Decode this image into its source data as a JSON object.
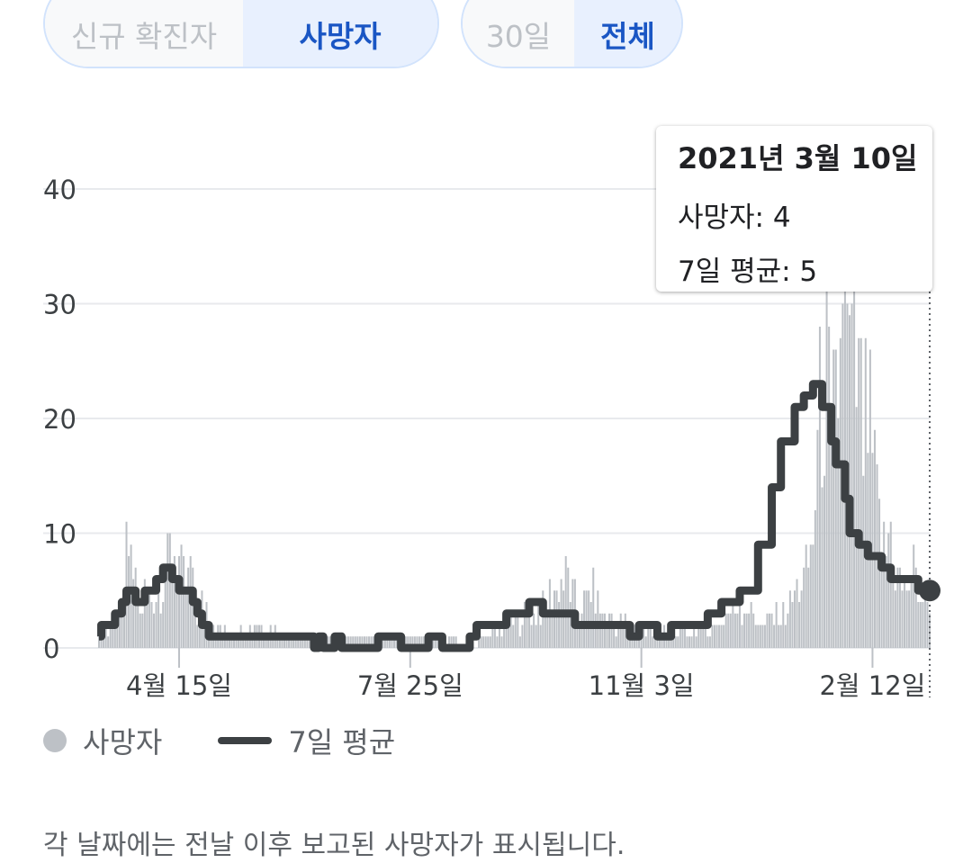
{
  "metric_toggle": {
    "options": [
      "신규 확진자",
      "사망자"
    ],
    "selected": "사망자"
  },
  "range_toggle": {
    "options": [
      "30일",
      "전체"
    ],
    "selected": "전체"
  },
  "tooltip": {
    "date": "2021년 3월 10일",
    "deaths_line": "사망자: 4",
    "avg_line": "7일 평균: 5"
  },
  "legend": {
    "bars": "사망자",
    "line": "7일 평균"
  },
  "footnote": "각 날짜에는 전날 이후 보고된 사망자가 표시됩니다.",
  "colors": {
    "bar": "#bdc1c6",
    "line": "#3c4043",
    "grid": "#e8eaed",
    "accent": "#1a56c4"
  },
  "chart_data": {
    "type": "bar",
    "title": "",
    "ylim": [
      0,
      40
    ],
    "y_ticks": [
      0,
      10,
      20,
      30,
      40
    ],
    "x_ticks": [
      {
        "label": "4월 15일",
        "day": 35
      },
      {
        "label": "7월 25일",
        "day": 136
      },
      {
        "label": "11월 3일",
        "day": 237
      },
      {
        "label": "2월 12일",
        "day": 338
      }
    ],
    "day_count": 364,
    "marker_day": 363,
    "series": [
      {
        "name": "사망자",
        "kind": "bar",
        "keypoints": [
          [
            0,
            1
          ],
          [
            6,
            2
          ],
          [
            10,
            3
          ],
          [
            12,
            4
          ],
          [
            14,
            7
          ],
          [
            18,
            3
          ],
          [
            20,
            5
          ],
          [
            24,
            4
          ],
          [
            28,
            6
          ],
          [
            30,
            7
          ],
          [
            32,
            9
          ],
          [
            34,
            8
          ],
          [
            38,
            5
          ],
          [
            40,
            7
          ],
          [
            42,
            3
          ],
          [
            46,
            4
          ],
          [
            50,
            2
          ],
          [
            56,
            1
          ],
          [
            70,
            2
          ],
          [
            80,
            1
          ],
          [
            100,
            1
          ],
          [
            120,
            1
          ],
          [
            140,
            1
          ],
          [
            150,
            1
          ],
          [
            160,
            0
          ],
          [
            170,
            1
          ],
          [
            180,
            2
          ],
          [
            190,
            3
          ],
          [
            200,
            5
          ],
          [
            205,
            6
          ],
          [
            210,
            3
          ],
          [
            215,
            5
          ],
          [
            220,
            3
          ],
          [
            230,
            2
          ],
          [
            250,
            1
          ],
          [
            270,
            2
          ],
          [
            280,
            4
          ],
          [
            290,
            2
          ],
          [
            300,
            3
          ],
          [
            305,
            5
          ],
          [
            310,
            7
          ],
          [
            312,
            10
          ],
          [
            315,
            20
          ],
          [
            318,
            24
          ],
          [
            320,
            16
          ],
          [
            322,
            21
          ],
          [
            324,
            25
          ],
          [
            326,
            28
          ],
          [
            328,
            22
          ],
          [
            330,
            24
          ],
          [
            332,
            22
          ],
          [
            334,
            18
          ],
          [
            336,
            20
          ],
          [
            338,
            16
          ],
          [
            340,
            12
          ],
          [
            342,
            9
          ],
          [
            344,
            8
          ],
          [
            346,
            11
          ],
          [
            348,
            7
          ],
          [
            350,
            6
          ],
          [
            352,
            5
          ],
          [
            354,
            6
          ],
          [
            356,
            7
          ],
          [
            358,
            5
          ],
          [
            360,
            4
          ],
          [
            363,
            4
          ]
        ],
        "spikes": [
          [
            12,
            11
          ],
          [
            325,
            30
          ],
          [
            328,
            29
          ]
        ]
      },
      {
        "name": "7일 평균",
        "kind": "line",
        "values": [
          [
            0,
            1
          ],
          [
            1,
            2
          ],
          [
            7,
            3
          ],
          [
            10,
            4
          ],
          [
            12,
            5
          ],
          [
            16,
            4
          ],
          [
            20,
            5
          ],
          [
            25,
            6
          ],
          [
            28,
            7
          ],
          [
            32,
            6
          ],
          [
            35,
            5
          ],
          [
            39,
            5
          ],
          [
            41,
            4
          ],
          [
            43,
            3
          ],
          [
            45,
            2
          ],
          [
            48,
            1
          ],
          [
            94,
            0
          ],
          [
            96,
            1
          ],
          [
            98,
            0
          ],
          [
            103,
            1
          ],
          [
            106,
            0
          ],
          [
            122,
            1
          ],
          [
            132,
            0
          ],
          [
            144,
            1
          ],
          [
            150,
            0
          ],
          [
            162,
            1
          ],
          [
            165,
            2
          ],
          [
            178,
            3
          ],
          [
            188,
            4
          ],
          [
            194,
            3
          ],
          [
            208,
            2
          ],
          [
            232,
            1
          ],
          [
            236,
            2
          ],
          [
            244,
            1
          ],
          [
            250,
            2
          ],
          [
            266,
            3
          ],
          [
            272,
            4
          ],
          [
            280,
            5
          ],
          [
            288,
            9
          ],
          [
            294,
            14
          ],
          [
            298,
            18
          ],
          [
            304,
            21
          ],
          [
            308,
            22
          ],
          [
            312,
            23
          ],
          [
            316,
            21
          ],
          [
            320,
            18
          ],
          [
            322,
            16
          ],
          [
            326,
            13
          ],
          [
            328,
            10
          ],
          [
            332,
            9
          ],
          [
            336,
            8
          ],
          [
            342,
            7
          ],
          [
            346,
            6
          ],
          [
            352,
            6
          ],
          [
            358,
            5
          ],
          [
            363,
            5
          ]
        ]
      }
    ]
  }
}
